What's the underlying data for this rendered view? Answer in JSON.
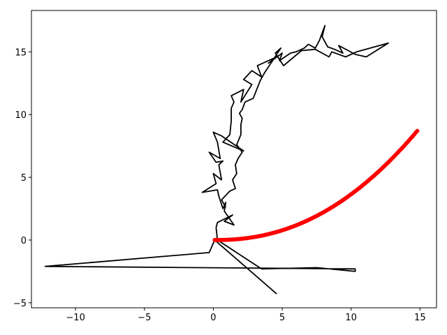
{
  "chart_data": {
    "type": "line",
    "title": "",
    "xlabel": "",
    "ylabel": "",
    "xlim": [
      -13.2,
      16.2
    ],
    "ylim": [
      -5.4,
      18.3
    ],
    "grid": false,
    "x_ticks": [
      -10,
      -5,
      0,
      5,
      10,
      15
    ],
    "x_tick_labels": [
      "−10",
      "−5",
      "0",
      "5",
      "10",
      "15"
    ],
    "y_ticks": [
      -5,
      0,
      5,
      10,
      15
    ],
    "y_tick_labels": [
      "−5",
      "0",
      "5",
      "10",
      "15"
    ],
    "series": [
      {
        "style": "line",
        "color": "#000000",
        "points": [
          [
            4.6,
            -4.3
          ],
          [
            0.1,
            0.0
          ],
          [
            -0.3,
            -1.0
          ],
          [
            -12.2,
            -2.1
          ],
          [
            10.3,
            -2.3
          ],
          [
            10.3,
            -2.5
          ],
          [
            7.5,
            -2.2
          ],
          [
            3.5,
            -2.3
          ],
          [
            0.3,
            0.0
          ],
          [
            0.2,
            1.0
          ],
          [
            0.3,
            1.4
          ],
          [
            1.4,
            2.0
          ],
          [
            0.8,
            1.5
          ],
          [
            1.5,
            1.2
          ],
          [
            0.8,
            2.3
          ],
          [
            0.9,
            3.0
          ],
          [
            0.7,
            2.5
          ],
          [
            0.4,
            3.5
          ],
          [
            0.3,
            4.0
          ],
          [
            -0.8,
            3.8
          ],
          [
            0.2,
            4.5
          ],
          [
            0.0,
            5.3
          ],
          [
            0.6,
            4.8
          ],
          [
            0.4,
            6.0
          ],
          [
            0.7,
            6.3
          ],
          [
            0.2,
            6.2
          ],
          [
            -0.3,
            7.0
          ],
          [
            0.5,
            6.5
          ],
          [
            0.3,
            7.8
          ],
          [
            0.0,
            8.6
          ],
          [
            0.6,
            8.3
          ],
          [
            2.2,
            7.1
          ],
          [
            0.7,
            7.8
          ],
          [
            1.2,
            8.4
          ],
          [
            1.3,
            9.5
          ],
          [
            1.3,
            10.5
          ],
          [
            1.5,
            11.0
          ],
          [
            1.3,
            11.5
          ],
          [
            2.2,
            12.0
          ],
          [
            2.0,
            11.0
          ],
          [
            2.8,
            12.4
          ],
          [
            2.2,
            12.8
          ],
          [
            2.8,
            13.5
          ],
          [
            3.5,
            13.0
          ],
          [
            3.2,
            13.9
          ],
          [
            4.0,
            14.3
          ],
          [
            4.6,
            14.6
          ],
          [
            4.0,
            14.1
          ],
          [
            5.0,
            14.9
          ],
          [
            4.8,
            14.3
          ],
          [
            5.6,
            14.9
          ],
          [
            6.0,
            15.0
          ],
          [
            6.6,
            15.3
          ],
          [
            6.9,
            15.6
          ],
          [
            7.4,
            15.3
          ],
          [
            7.7,
            15.9
          ],
          [
            8.1,
            17.1
          ],
          [
            7.9,
            16.2
          ],
          [
            8.3,
            15.4
          ],
          [
            8.8,
            15.2
          ],
          [
            9.4,
            14.9
          ],
          [
            9.1,
            15.5
          ],
          [
            9.8,
            15.1
          ],
          [
            10.3,
            14.8
          ],
          [
            11.1,
            14.6
          ],
          [
            12.7,
            15.7
          ],
          [
            10.4,
            15.0
          ],
          [
            9.6,
            14.6
          ],
          [
            8.6,
            15.0
          ],
          [
            8.4,
            14.6
          ],
          [
            7.4,
            15.2
          ],
          [
            6.4,
            15.1
          ],
          [
            5.1,
            13.9
          ],
          [
            4.5,
            14.9
          ],
          [
            4.9,
            15.3
          ],
          [
            3.7,
            13.3
          ],
          [
            3.4,
            12.7
          ],
          [
            2.9,
            11.3
          ],
          [
            2.3,
            11.0
          ],
          [
            2.1,
            10.4
          ],
          [
            1.9,
            10.1
          ],
          [
            2.1,
            9.7
          ],
          [
            2.0,
            9.2
          ],
          [
            2.0,
            8.4
          ],
          [
            1.7,
            7.6
          ],
          [
            2.1,
            7.0
          ],
          [
            1.8,
            6.5
          ],
          [
            1.6,
            6.0
          ],
          [
            1.7,
            5.3
          ],
          [
            1.4,
            4.8
          ],
          [
            1.6,
            4.1
          ],
          [
            1.2,
            3.9
          ],
          [
            0.6,
            3.2
          ],
          [
            0.9,
            2.6
          ]
        ]
      },
      {
        "style": "markers",
        "color": "#ff0000",
        "x_range": [
          0.1,
          14.8
        ],
        "y_at_start": 0.0,
        "y_at_end": 8.7,
        "shape": "power curve, exponent 2.2"
      }
    ]
  }
}
